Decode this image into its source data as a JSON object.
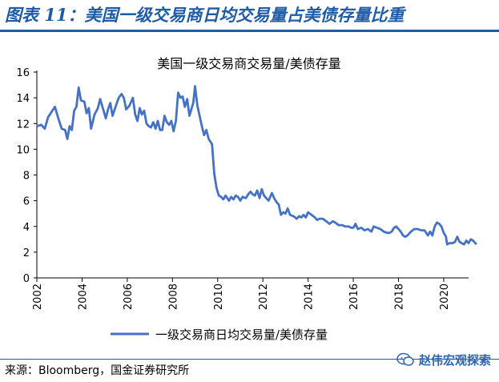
{
  "figure_title": "图表 11：美国一级交易商日均交易量占美债存量比重",
  "source_note": "来源：Bloomberg，国金证券研究所",
  "watermark": "赵伟宏观探索",
  "colors": {
    "title": "#1f5ca8",
    "line": "#4472c4",
    "axis": "#000000"
  },
  "chart_data": {
    "type": "line",
    "title": "美国一级交易商交易量/美债存量",
    "xlabel": "",
    "ylabel": "",
    "x_ticks": [
      "2002",
      "2004",
      "2006",
      "2008",
      "2010",
      "2012",
      "2014",
      "2016",
      "2018",
      "2020"
    ],
    "y_ticks": [
      "0",
      "2",
      "4",
      "6",
      "8",
      "10",
      "12",
      "14",
      "16"
    ],
    "xlim": [
      2002.0,
      2021.1
    ],
    "ylim": [
      0,
      16
    ],
    "grid": false,
    "legend_position": "bottom",
    "series": [
      {
        "name": "一级交易商日均交易量/美债存量",
        "color": "#4472c4",
        "points": [
          [
            2002.0,
            11.8
          ],
          [
            2002.2,
            11.9
          ],
          [
            2002.35,
            11.6
          ],
          [
            2002.5,
            12.5
          ],
          [
            2002.65,
            12.9
          ],
          [
            2002.8,
            13.3
          ],
          [
            2002.95,
            12.4
          ],
          [
            2003.1,
            11.6
          ],
          [
            2003.25,
            11.5
          ],
          [
            2003.35,
            10.8
          ],
          [
            2003.45,
            11.8
          ],
          [
            2003.55,
            11.5
          ],
          [
            2003.65,
            13.0
          ],
          [
            2003.75,
            13.3
          ],
          [
            2003.85,
            14.8
          ],
          [
            2003.95,
            13.8
          ],
          [
            2004.1,
            13.7
          ],
          [
            2004.2,
            12.8
          ],
          [
            2004.3,
            13.2
          ],
          [
            2004.4,
            11.6
          ],
          [
            2004.55,
            12.7
          ],
          [
            2004.7,
            13.2
          ],
          [
            2004.8,
            13.9
          ],
          [
            2004.92,
            13.2
          ],
          [
            2005.05,
            12.4
          ],
          [
            2005.15,
            13.1
          ],
          [
            2005.25,
            13.6
          ],
          [
            2005.35,
            12.6
          ],
          [
            2005.5,
            13.4
          ],
          [
            2005.62,
            14.0
          ],
          [
            2005.75,
            14.3
          ],
          [
            2005.85,
            14.0
          ],
          [
            2005.95,
            13.1
          ],
          [
            2006.1,
            13.4
          ],
          [
            2006.25,
            14.0
          ],
          [
            2006.35,
            12.7
          ],
          [
            2006.45,
            12.2
          ],
          [
            2006.55,
            13.2
          ],
          [
            2006.65,
            12.7
          ],
          [
            2006.75,
            13.0
          ],
          [
            2006.85,
            12.0
          ],
          [
            2006.95,
            11.8
          ],
          [
            2007.05,
            11.7
          ],
          [
            2007.15,
            12.1
          ],
          [
            2007.25,
            11.6
          ],
          [
            2007.35,
            12.2
          ],
          [
            2007.45,
            11.5
          ],
          [
            2007.55,
            11.5
          ],
          [
            2007.65,
            12.6
          ],
          [
            2007.75,
            12.1
          ],
          [
            2007.85,
            11.9
          ],
          [
            2007.95,
            12.2
          ],
          [
            2008.05,
            11.4
          ],
          [
            2008.15,
            12.2
          ],
          [
            2008.25,
            14.4
          ],
          [
            2008.35,
            14.0
          ],
          [
            2008.45,
            14.1
          ],
          [
            2008.55,
            13.3
          ],
          [
            2008.65,
            13.9
          ],
          [
            2008.75,
            12.6
          ],
          [
            2008.85,
            13.2
          ],
          [
            2008.92,
            13.6
          ],
          [
            2009.0,
            14.9
          ],
          [
            2009.1,
            13.4
          ],
          [
            2009.2,
            12.6
          ],
          [
            2009.3,
            11.8
          ],
          [
            2009.4,
            11.1
          ],
          [
            2009.5,
            11.5
          ],
          [
            2009.6,
            10.8
          ],
          [
            2009.75,
            10.4
          ],
          [
            2009.85,
            8.1
          ],
          [
            2009.95,
            7.0
          ],
          [
            2010.05,
            6.4
          ],
          [
            2010.15,
            6.3
          ],
          [
            2010.25,
            6.1
          ],
          [
            2010.35,
            6.4
          ],
          [
            2010.5,
            6.0
          ],
          [
            2010.6,
            6.3
          ],
          [
            2010.7,
            6.1
          ],
          [
            2010.8,
            6.4
          ],
          [
            2010.9,
            6.3
          ],
          [
            2011.0,
            6.0
          ],
          [
            2011.1,
            6.3
          ],
          [
            2011.25,
            6.2
          ],
          [
            2011.35,
            6.5
          ],
          [
            2011.45,
            6.7
          ],
          [
            2011.55,
            6.5
          ],
          [
            2011.65,
            6.4
          ],
          [
            2011.75,
            6.8
          ],
          [
            2011.85,
            6.2
          ],
          [
            2011.95,
            6.9
          ],
          [
            2012.05,
            6.4
          ],
          [
            2012.15,
            6.2
          ],
          [
            2012.25,
            6.0
          ],
          [
            2012.4,
            6.6
          ],
          [
            2012.5,
            6.2
          ],
          [
            2012.6,
            5.9
          ],
          [
            2012.7,
            5.7
          ],
          [
            2012.8,
            4.9
          ],
          [
            2012.9,
            5.1
          ],
          [
            2013.0,
            5.0
          ],
          [
            2013.1,
            5.4
          ],
          [
            2013.2,
            4.9
          ],
          [
            2013.35,
            4.8
          ],
          [
            2013.5,
            4.6
          ],
          [
            2013.6,
            4.8
          ],
          [
            2013.7,
            4.7
          ],
          [
            2013.8,
            4.9
          ],
          [
            2013.9,
            4.7
          ],
          [
            2014.0,
            5.1
          ],
          [
            2014.15,
            4.9
          ],
          [
            2014.3,
            4.7
          ],
          [
            2014.4,
            4.5
          ],
          [
            2014.5,
            4.6
          ],
          [
            2014.65,
            4.6
          ],
          [
            2014.8,
            4.4
          ],
          [
            2014.95,
            4.2
          ],
          [
            2015.1,
            4.4
          ],
          [
            2015.2,
            4.3
          ],
          [
            2015.35,
            4.1
          ],
          [
            2015.5,
            4.1
          ],
          [
            2015.65,
            4.0
          ],
          [
            2015.8,
            4.0
          ],
          [
            2015.9,
            3.9
          ],
          [
            2016.0,
            3.9
          ],
          [
            2016.1,
            4.2
          ],
          [
            2016.2,
            3.8
          ],
          [
            2016.35,
            3.9
          ],
          [
            2016.5,
            3.7
          ],
          [
            2016.65,
            3.8
          ],
          [
            2016.8,
            3.6
          ],
          [
            2016.9,
            4.0
          ],
          [
            2017.05,
            3.9
          ],
          [
            2017.2,
            3.8
          ],
          [
            2017.35,
            3.6
          ],
          [
            2017.5,
            3.5
          ],
          [
            2017.6,
            3.5
          ],
          [
            2017.7,
            3.6
          ],
          [
            2017.8,
            3.9
          ],
          [
            2017.9,
            4.0
          ],
          [
            2018.0,
            3.8
          ],
          [
            2018.1,
            3.6
          ],
          [
            2018.2,
            3.3
          ],
          [
            2018.3,
            3.2
          ],
          [
            2018.4,
            3.3
          ],
          [
            2018.55,
            3.6
          ],
          [
            2018.7,
            3.8
          ],
          [
            2018.85,
            3.8
          ],
          [
            2019.0,
            3.7
          ],
          [
            2019.15,
            3.7
          ],
          [
            2019.3,
            3.3
          ],
          [
            2019.4,
            3.6
          ],
          [
            2019.5,
            3.3
          ],
          [
            2019.6,
            4.0
          ],
          [
            2019.7,
            4.3
          ],
          [
            2019.8,
            4.2
          ],
          [
            2019.9,
            4.0
          ],
          [
            2020.0,
            3.5
          ],
          [
            2020.1,
            3.2
          ],
          [
            2020.15,
            2.6
          ],
          [
            2020.25,
            2.7
          ],
          [
            2020.4,
            2.7
          ],
          [
            2020.5,
            2.8
          ],
          [
            2020.6,
            3.2
          ],
          [
            2020.7,
            2.8
          ],
          [
            2020.8,
            2.7
          ],
          [
            2020.9,
            2.6
          ],
          [
            2021.0,
            2.9
          ],
          [
            2021.1,
            2.7
          ],
          [
            2021.2,
            3.0
          ],
          [
            2021.3,
            2.9
          ],
          [
            2021.4,
            2.7
          ],
          [
            2021.45,
            2.6
          ]
        ]
      }
    ]
  }
}
